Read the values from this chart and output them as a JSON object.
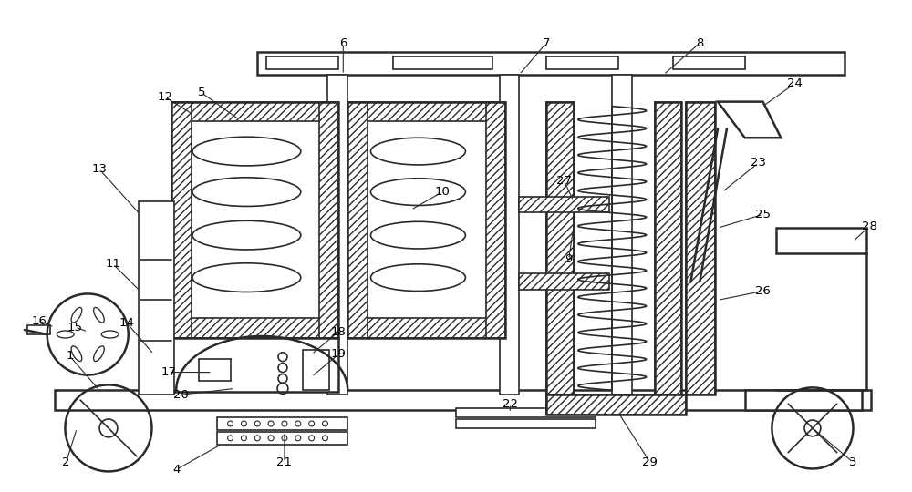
{
  "bg_color": "#ffffff",
  "line_color": "#2a2a2a",
  "figsize": [
    10.0,
    5.4
  ],
  "dpi": 100
}
